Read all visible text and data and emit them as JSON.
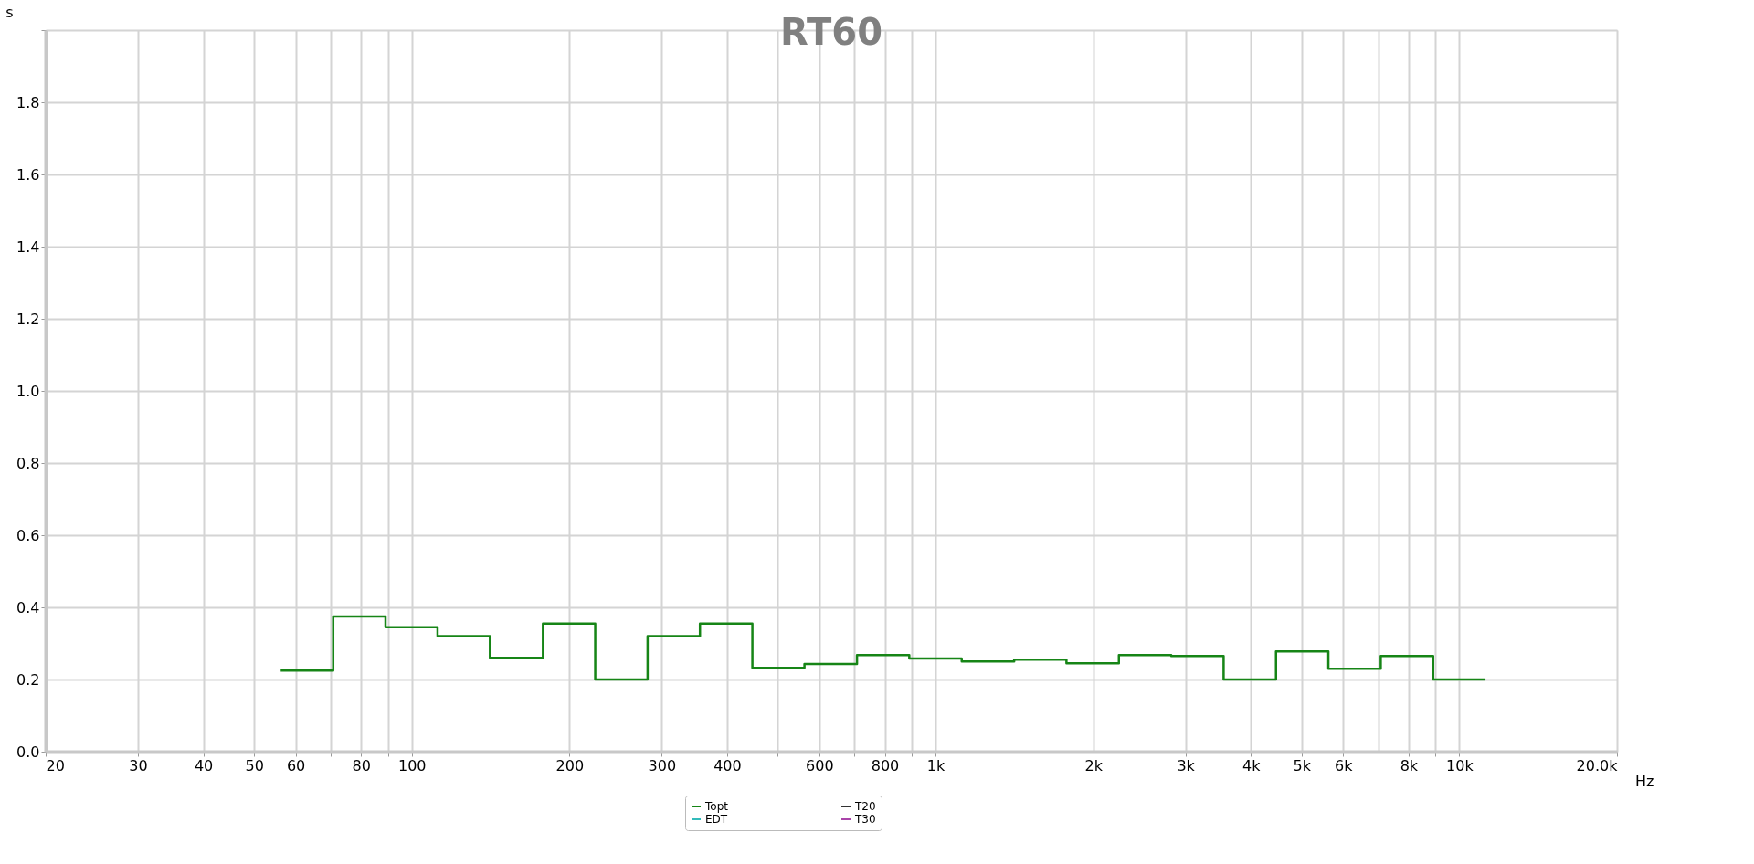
{
  "chart_data": {
    "type": "step",
    "title": "RT60",
    "xlabel": "Hz",
    "ylabel": "s",
    "x": [
      56.2,
      70.8,
      89.1,
      112,
      141,
      178,
      224,
      282,
      355,
      447,
      562,
      708,
      891,
      1122,
      1413,
      1778,
      2239,
      2818,
      3548,
      4467,
      5623,
      7079,
      8913,
      11220
    ],
    "series": [
      {
        "name": "Topt",
        "color": "#168516",
        "values": [
          0.225,
          0.375,
          0.345,
          0.32,
          0.26,
          0.355,
          0.2,
          0.32,
          0.355,
          0.232,
          0.243,
          0.268,
          0.258,
          0.25,
          0.255,
          0.245,
          0.268,
          0.265,
          0.2,
          0.278,
          0.23,
          0.265,
          0.2,
          0.2
        ]
      },
      {
        "name": "EDT",
        "color": "#33bbbb",
        "values": [
          null,
          null,
          null,
          null,
          null,
          null,
          null,
          null,
          null,
          null,
          null,
          null,
          null,
          null,
          null,
          null,
          null,
          null,
          null,
          null,
          null,
          null,
          null,
          null
        ]
      },
      {
        "name": "T20",
        "color": "#333333",
        "values": [
          null,
          null,
          null,
          null,
          null,
          null,
          null,
          null,
          null,
          null,
          null,
          null,
          null,
          null,
          null,
          null,
          null,
          null,
          null,
          null,
          null,
          null,
          null,
          null
        ]
      },
      {
        "name": "T30",
        "color": "#aa44aa",
        "values": [
          null,
          null,
          null,
          null,
          null,
          null,
          null,
          null,
          null,
          null,
          null,
          null,
          null,
          null,
          null,
          null,
          null,
          null,
          null,
          null,
          null,
          null,
          null,
          null
        ]
      }
    ],
    "log": "x",
    "xlim": [
      20,
      20000
    ],
    "xticks": [
      20,
      30,
      40,
      50,
      60,
      {
        "value": 70,
        "label": null
      },
      80,
      {
        "value": 90,
        "label": null
      },
      100,
      200,
      300,
      400,
      {
        "value": 500,
        "label": null
      },
      600,
      {
        "value": 700,
        "label": null
      },
      800,
      {
        "value": 900,
        "label": null
      },
      {
        "value": 1000,
        "label": "1k"
      },
      {
        "value": 2000,
        "label": "2k"
      },
      {
        "value": 3000,
        "label": "3k"
      },
      {
        "value": 4000,
        "label": "4k"
      },
      {
        "value": 5000,
        "label": "5k"
      },
      {
        "value": 6000,
        "label": "6k"
      },
      {
        "value": 7000,
        "label": null
      },
      {
        "value": 8000,
        "label": "8k"
      },
      {
        "value": 9000,
        "label": null
      },
      {
        "value": 10000,
        "label": "10k"
      },
      {
        "value": 20000,
        "label": "20.0k"
      }
    ],
    "ylim": [
      0,
      2.0
    ],
    "yticks": [
      {
        "value": 0,
        "label": "0.0"
      },
      0.2,
      0.4,
      0.6,
      0.8,
      {
        "value": 1.0,
        "label": "1.0"
      },
      1.2,
      1.4,
      1.6,
      1.8,
      {
        "value": 2.0,
        "label": null
      }
    ],
    "grid": true,
    "legend": "bottom",
    "line_style": "solid",
    "marker": "none"
  }
}
